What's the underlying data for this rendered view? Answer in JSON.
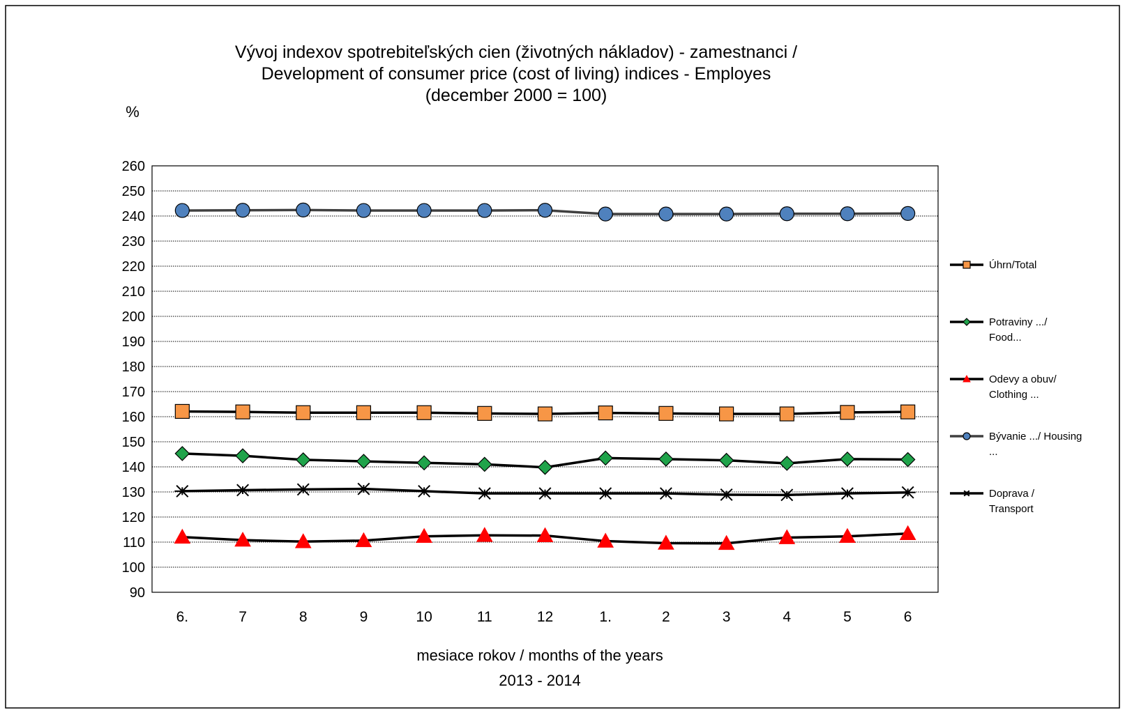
{
  "chart_data": {
    "type": "line",
    "title": [
      "Vývoj indexov spotrebiteľských cien (životných nákladov) - zamestnanci /",
      "Development of consumer price (cost of living) indices - Employes",
      "(december 2000 = 100)"
    ],
    "ylabel": "%",
    "xlabel": [
      "mesiace rokov / months of the years",
      "2013 - 2014"
    ],
    "ylim": [
      90,
      260
    ],
    "ytick_step": 10,
    "grid": "horizontal-dotted",
    "legend_position": "right",
    "categories": [
      "6.",
      "7",
      "8",
      "9",
      "10",
      "11",
      "12",
      "1.",
      "2",
      "3",
      "4",
      "5",
      "6"
    ],
    "series": [
      {
        "name": "Úhrn/Total",
        "legend_lines": [
          "Úhrn/Total"
        ],
        "marker": "square",
        "color": "#F79646",
        "line_color": "#000000",
        "values": [
          162.1,
          161.9,
          161.6,
          161.6,
          161.6,
          161.3,
          161.1,
          161.5,
          161.3,
          161.1,
          161.1,
          161.7,
          161.9
        ]
      },
      {
        "name": "Potraviny .../ Food...",
        "legend_lines": [
          "Potraviny .../",
          "Food..."
        ],
        "marker": "diamond",
        "color": "#1FA34A",
        "line_color": "#000000",
        "values": [
          145.3,
          144.4,
          142.8,
          142.2,
          141.6,
          141.0,
          139.8,
          143.5,
          143.1,
          142.6,
          141.4,
          143.1,
          142.9
        ]
      },
      {
        "name": "Odevy a obuv/ Clothing ...",
        "legend_lines": [
          "Odevy a obuv/",
          "Clothing ..."
        ],
        "marker": "triangle",
        "color": "#FF0000",
        "line_color": "#000000",
        "values": [
          112.0,
          110.8,
          110.2,
          110.6,
          112.3,
          112.7,
          112.6,
          110.4,
          109.6,
          109.5,
          111.8,
          112.3,
          113.4
        ]
      },
      {
        "name": "Bývanie .../ Housing ...",
        "legend_lines": [
          "Bývanie .../    Housing",
          "..."
        ],
        "marker": "circle",
        "color": "#4F81BD",
        "line_color": "#404040",
        "values": [
          242.2,
          242.3,
          242.4,
          242.2,
          242.2,
          242.2,
          242.3,
          240.8,
          240.8,
          240.8,
          240.9,
          240.9,
          241.0
        ]
      },
      {
        "name": "Doprava / Transport",
        "legend_lines": [
          "Doprava /",
          "Transport"
        ],
        "marker": "star",
        "color": "#000000",
        "line_color": "#000000",
        "values": [
          130.3,
          130.7,
          131.0,
          131.2,
          130.3,
          129.4,
          129.4,
          129.4,
          129.4,
          128.9,
          128.8,
          129.4,
          129.8
        ]
      }
    ]
  }
}
